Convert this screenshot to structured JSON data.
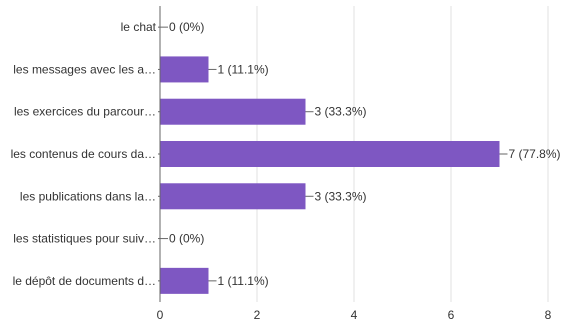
{
  "chart_data": {
    "type": "bar",
    "orientation": "horizontal",
    "categories": [
      "le chat",
      "les messages avec les a…",
      "les exercices du parcour…",
      "les contenus de cours da…",
      "les publications dans la…",
      "les statistiques pour suiv…",
      "le dépôt de documents d…"
    ],
    "values": [
      0,
      1,
      3,
      7,
      3,
      0,
      1
    ],
    "value_labels": [
      "0 (0%)",
      "1 (11.1%)",
      "3 (33.3%)",
      "7 (77.8%)",
      "3 (33.3%)",
      "0 (0%)",
      "1 (11.1%)"
    ],
    "xlim": [
      0,
      8
    ],
    "x_ticks": [
      0,
      2,
      4,
      6,
      8
    ],
    "grid": true,
    "colors": {
      "bar": "#7e57c2",
      "grid": "#e0e0e0",
      "axis": "#666666",
      "text": "#333333"
    }
  }
}
